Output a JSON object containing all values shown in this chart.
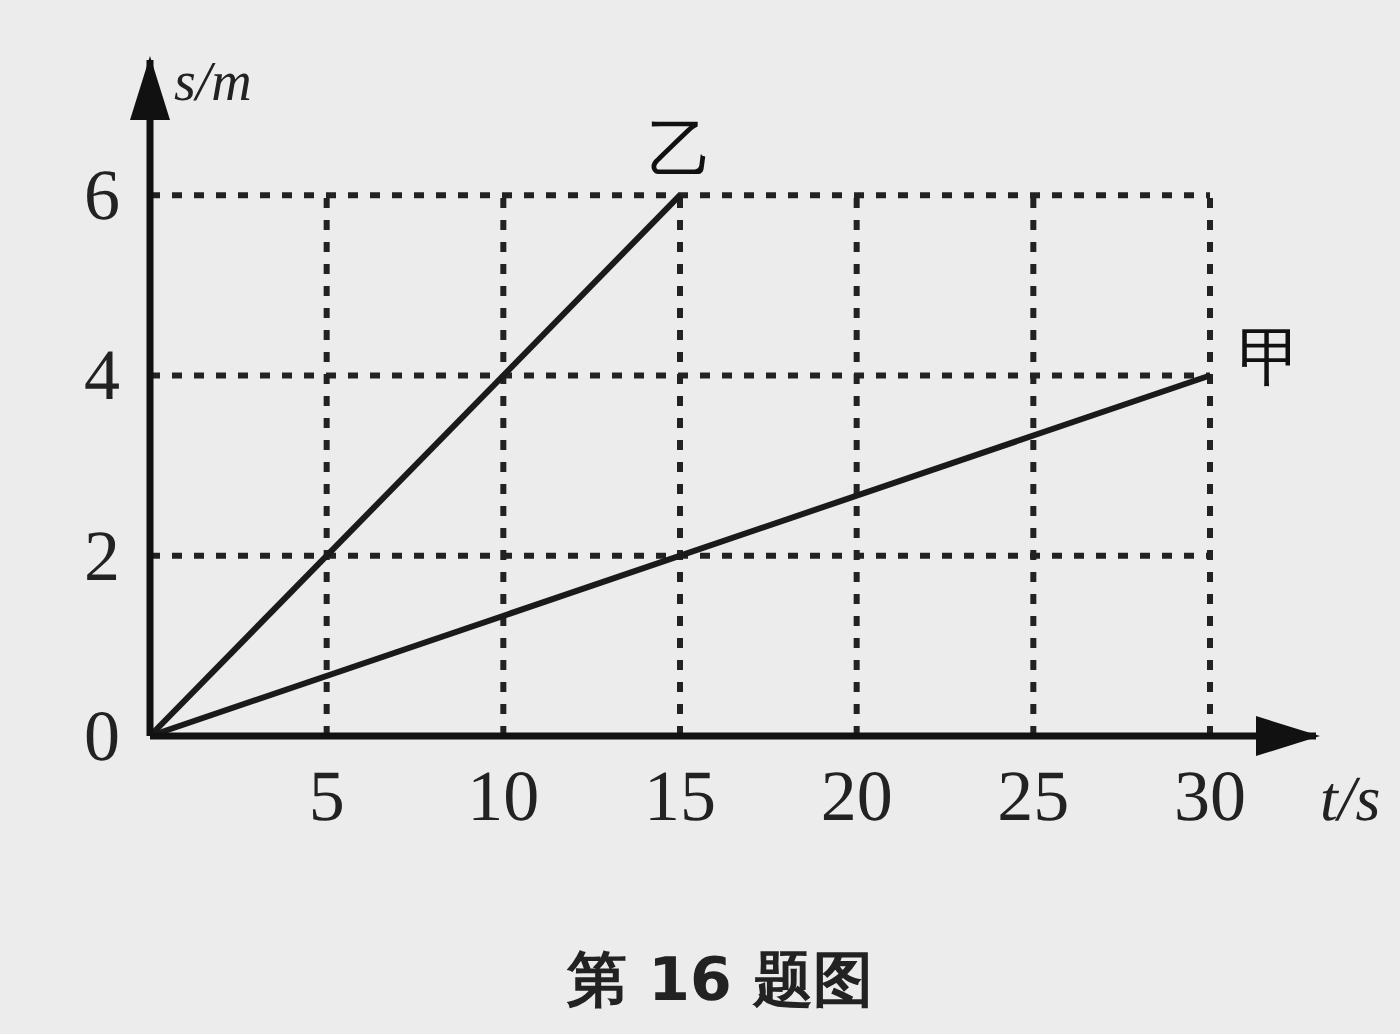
{
  "chart_data": {
    "type": "line",
    "xlabel": "t/s",
    "ylabel": "s/m",
    "xlim": [
      0,
      33
    ],
    "ylim": [
      0,
      7.5
    ],
    "xticks": [
      5,
      10,
      15,
      20,
      25,
      30
    ],
    "yticks": [
      0,
      2,
      4,
      6
    ],
    "grid": true,
    "line_style": "solid",
    "series": [
      {
        "name": "乙",
        "color": "#1a1a1a",
        "x": [
          0,
          15
        ],
        "values": [
          0,
          6
        ]
      },
      {
        "name": "甲",
        "color": "#1a1a1a",
        "x": [
          0,
          30
        ],
        "values": [
          0,
          4
        ]
      }
    ],
    "annotations": [
      "第 16 题图"
    ]
  }
}
